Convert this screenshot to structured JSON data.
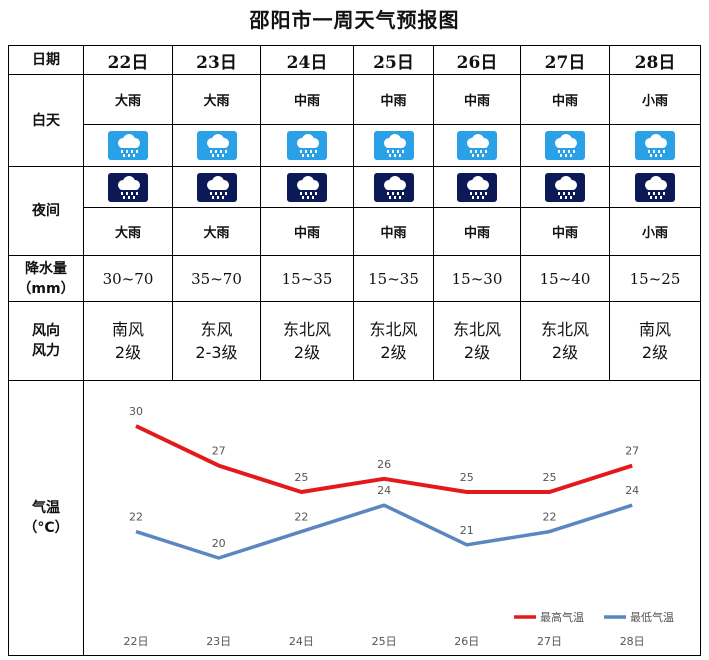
{
  "title": "邵阳市一周天气预报图",
  "row_labels": {
    "date": "日期",
    "day": "白天",
    "night": "夜间",
    "precip_line1": "降水量",
    "precip_line2": "（mm）",
    "wind_line1": "风向",
    "wind_line2": "风力",
    "temp_line1": "气温",
    "temp_line2": "（°C）"
  },
  "days": [
    {
      "date": "22日",
      "day_weather": "大雨",
      "night_weather": "大雨",
      "precip": "30~70",
      "wind_dir": "南风",
      "wind_force": "2级"
    },
    {
      "date": "23日",
      "day_weather": "大雨",
      "night_weather": "大雨",
      "precip": "35~70",
      "wind_dir": "东风",
      "wind_force": "2-3级"
    },
    {
      "date": "24日",
      "day_weather": "中雨",
      "night_weather": "中雨",
      "precip": "15~35",
      "wind_dir": "东北风",
      "wind_force": "2级"
    },
    {
      "date": "25日",
      "day_weather": "中雨",
      "night_weather": "中雨",
      "precip": "15~35",
      "wind_dir": "东北风",
      "wind_force": "2级"
    },
    {
      "date": "26日",
      "day_weather": "中雨",
      "night_weather": "中雨",
      "precip": "15~30",
      "wind_dir": "东北风",
      "wind_force": "2级"
    },
    {
      "date": "27日",
      "day_weather": "中雨",
      "night_weather": "中雨",
      "precip": "15~40",
      "wind_dir": "东北风",
      "wind_force": "2级"
    },
    {
      "date": "28日",
      "day_weather": "小雨",
      "night_weather": "小雨",
      "precip": "15~25",
      "wind_dir": "南风",
      "wind_force": "2级"
    }
  ],
  "icons": {
    "day": "rain-cloud-day-icon",
    "night": "rain-cloud-night-icon",
    "day_color": "#2aa0e6",
    "night_color": "#0b1a56"
  },
  "chart_data": {
    "type": "line",
    "x": [
      "22日",
      "23日",
      "24日",
      "25日",
      "26日",
      "27日",
      "28日"
    ],
    "series": [
      {
        "name": "最高气温",
        "values": [
          30,
          27,
          25,
          26,
          25,
          25,
          27
        ],
        "color": "#e31a1c"
      },
      {
        "name": "最低气温",
        "values": [
          22,
          20,
          22,
          24,
          21,
          22,
          24
        ],
        "color": "#5b86c0"
      }
    ],
    "legend": "bottom-right",
    "grid": false
  }
}
